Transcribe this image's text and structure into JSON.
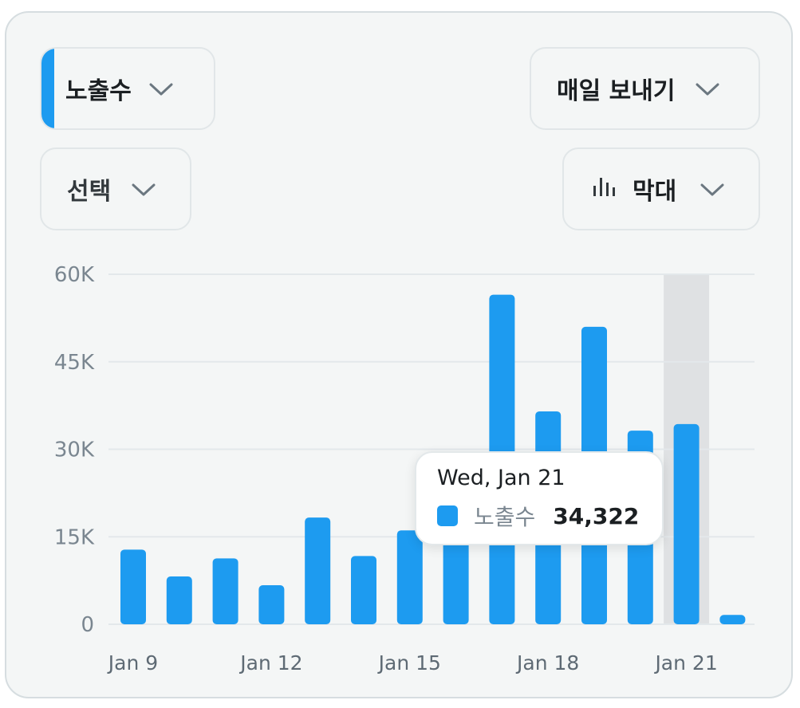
{
  "controls": {
    "metric": {
      "label": "노출수"
    },
    "export": {
      "label": "매일 보내기"
    },
    "select": {
      "label": "선택"
    },
    "chart_type": {
      "label": "막대"
    }
  },
  "icons": {
    "chevron": "chevron-down-icon",
    "chart_type": "bar-chart-icon"
  },
  "colors": {
    "accent": "#1d9bf0",
    "highlight_band": "#dfe1e3"
  },
  "tooltip": {
    "date": "Wed, Jan 21",
    "series": "노출수",
    "value": "34,322"
  },
  "chart_data": {
    "type": "bar",
    "categories": [
      "Jan 9",
      "Jan 10",
      "Jan 11",
      "Jan 12",
      "Jan 13",
      "Jan 14",
      "Jan 15",
      "Jan 16",
      "Jan 17",
      "Jan 18",
      "Jan 19",
      "Jan 20",
      "Jan 21",
      "Jan 22"
    ],
    "x_tick_labels": [
      "Jan 9",
      "Jan 12",
      "Jan 15",
      "Jan 18",
      "Jan 21"
    ],
    "series": [
      {
        "name": "노출수",
        "values": [
          12800,
          8200,
          11300,
          6700,
          18300,
          11700,
          16100,
          20000,
          56500,
          36500,
          51000,
          33200,
          34322,
          1600
        ]
      }
    ],
    "ylim": [
      0,
      60000
    ],
    "y_ticks": [
      0,
      15000,
      30000,
      45000,
      60000
    ],
    "y_tick_labels": [
      "0",
      "15K",
      "30K",
      "45K",
      "60K"
    ],
    "highlighted_category": "Jan 21",
    "grid": true,
    "xlabel": "",
    "ylabel": ""
  }
}
